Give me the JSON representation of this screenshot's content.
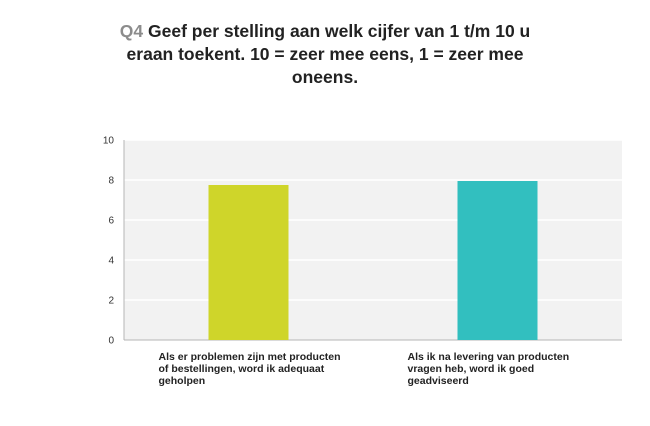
{
  "title": {
    "qnum": "Q4",
    "text": "Geef per stelling aan welk cijfer van 1 t/m 10 u eraan toekent. 10 = zeer mee eens, 1 = zeer mee oneens."
  },
  "chart_data": {
    "type": "bar",
    "categories": [
      "Als er problemen zijn met producten of bestellingen, word ik adequaat geholpen",
      "Als ik na levering van producten vragen heb, word ik goed geadviseerd"
    ],
    "values": [
      7.75,
      7.95
    ],
    "colors": [
      "#cfd52a",
      "#32bfbf"
    ],
    "ylim": [
      0,
      10
    ],
    "yticks": [
      "0",
      "2",
      "4",
      "6",
      "8",
      "10"
    ],
    "grid": true
  }
}
